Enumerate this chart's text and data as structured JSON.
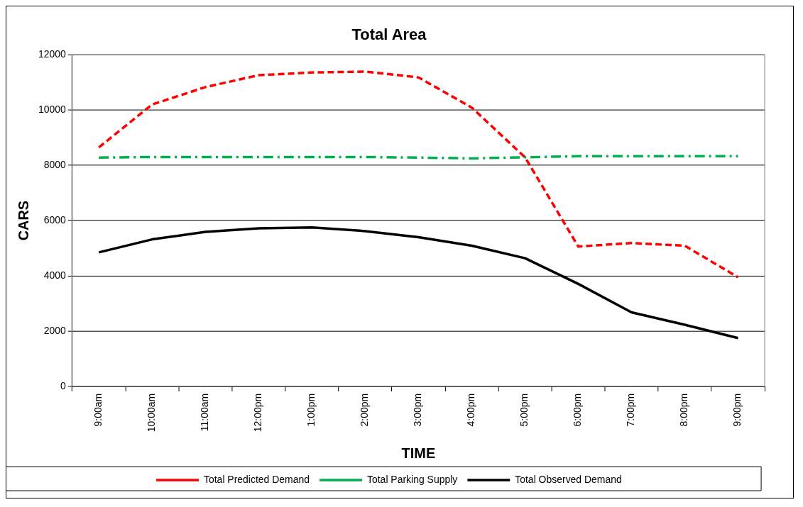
{
  "chart_data": {
    "type": "line",
    "title": "Total Area",
    "xlabel": "TIME",
    "ylabel": "CARS",
    "categories": [
      "9:00am",
      "10:00am",
      "11:00am",
      "12:00pm",
      "1:00pm",
      "2:00pm",
      "3:00pm",
      "4:00pm",
      "5:00pm",
      "6:00pm",
      "7:00pm",
      "8:00pm",
      "9:00pm"
    ],
    "series": [
      {
        "name": "Total Predicted Demand",
        "color": "#ff0000",
        "line_style": "dashed",
        "values": [
          8650,
          10200,
          10830,
          11260,
          11360,
          11390,
          11180,
          10090,
          8290,
          5060,
          5190,
          5090,
          3950
        ]
      },
      {
        "name": "Total Parking Supply",
        "color": "#00b050",
        "line_style": "dashdot",
        "values": [
          8280,
          8300,
          8300,
          8300,
          8300,
          8300,
          8280,
          8250,
          8290,
          8330,
          8330,
          8330,
          8330
        ]
      },
      {
        "name": "Total Observed Demand",
        "color": "#000000",
        "line_style": "solid",
        "values": [
          4850,
          5320,
          5590,
          5720,
          5750,
          5620,
          5400,
          5090,
          4640,
          3710,
          2680,
          2230,
          1750
        ]
      }
    ],
    "ylim": [
      0,
      12000
    ],
    "yticks": [
      0,
      2000,
      4000,
      6000,
      8000,
      10000,
      12000
    ],
    "grid": "y",
    "legend": "bottom",
    "marker": "none"
  }
}
